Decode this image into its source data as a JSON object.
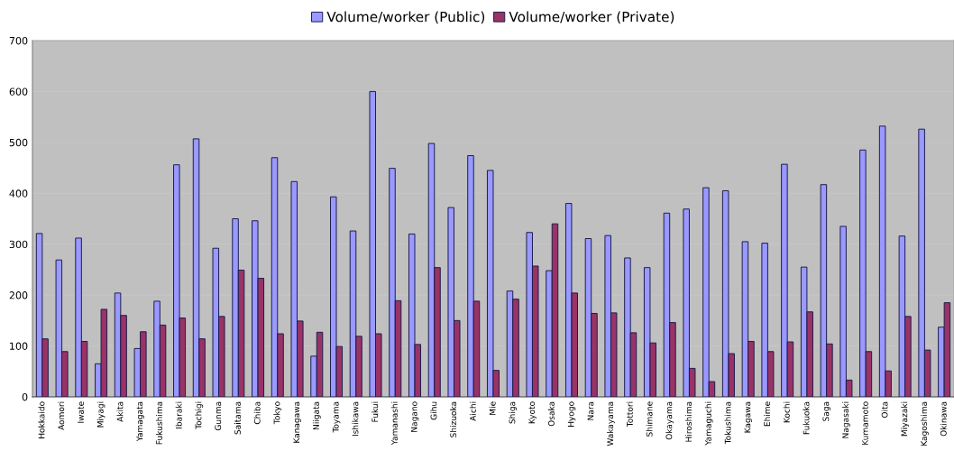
{
  "chart_data": {
    "type": "bar",
    "categories": [
      "Hokkaido",
      "Aomori",
      "Iwate",
      "Miyagi",
      "Akita",
      "Yamagata",
      "Fukushima",
      "Ibaraki",
      "Tochigi",
      "Gunma",
      "Saitama",
      "Chiba",
      "Tokyo",
      "Kanagawa",
      "Niigata",
      "Toyama",
      "Ishikawa",
      "Fukui",
      "Yamanashi",
      "Nagano",
      "Gihu",
      "Shizuoka",
      "Aichi",
      "Mie",
      "Shiga",
      "Kyoto",
      "Osaka",
      "Hyogo",
      "Nara",
      "Wakayama",
      "Tottori",
      "Shimane",
      "Okayama",
      "Hiroshima",
      "Yamaguchi",
      "Tokushima",
      "Kagawa",
      "Ehime",
      "Kochi",
      "Fukuoka",
      "Saga",
      "Nagasaki",
      "Kumamoto",
      "Oita",
      "Miyazaki",
      "Kagoshima",
      "Okinawa"
    ],
    "series": [
      {
        "name": "Volume/worker (Public)",
        "color": "#9999ff",
        "values": [
          321,
          269,
          312,
          65,
          204,
          95,
          188,
          456,
          507,
          292,
          350,
          346,
          470,
          423,
          80,
          393,
          326,
          600,
          449,
          320,
          498,
          372,
          474,
          445,
          208,
          323,
          248,
          380,
          311,
          317,
          273,
          254,
          361,
          369,
          411,
          405,
          305,
          302,
          457,
          255,
          417,
          335,
          485,
          532,
          316,
          526,
          137
        ]
      },
      {
        "name": "Volume/worker (Private)",
        "color": "#993366",
        "values": [
          114,
          89,
          109,
          172,
          160,
          128,
          141,
          155,
          114,
          158,
          249,
          233,
          124,
          149,
          127,
          99,
          119,
          124,
          189,
          103,
          254,
          150,
          188,
          52,
          192,
          257,
          340,
          204,
          164,
          165,
          126,
          106,
          146,
          56,
          30,
          85,
          109,
          89,
          108,
          167,
          104,
          33,
          89,
          51,
          158,
          92,
          185
        ]
      }
    ],
    "ylim": [
      0,
      700
    ],
    "yticks": [
      0,
      100,
      200,
      300,
      400,
      500,
      600,
      700
    ],
    "grid": "y",
    "legend": "top"
  }
}
